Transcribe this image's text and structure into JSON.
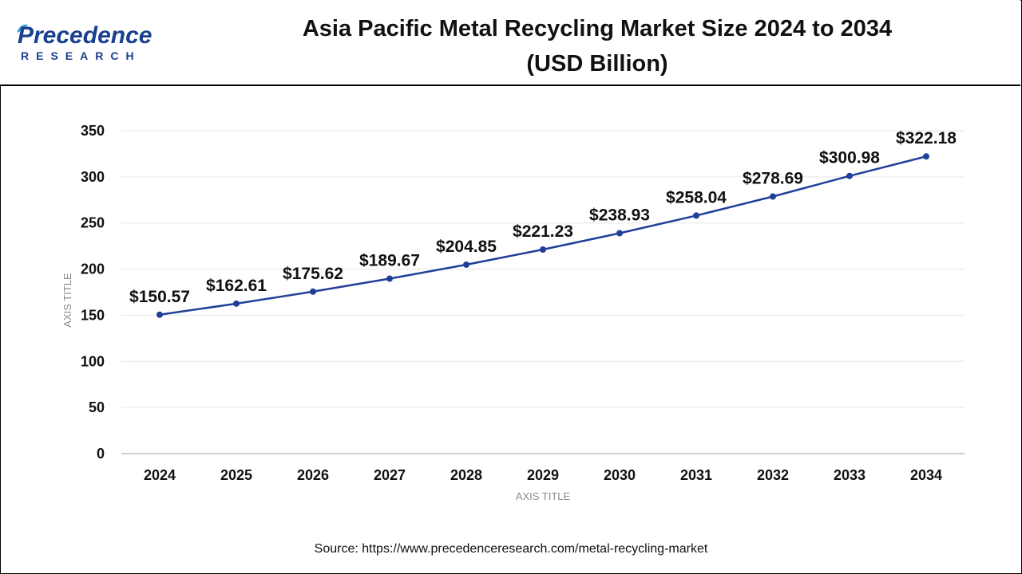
{
  "brand": {
    "name": "Precedence",
    "sub": "RESEARCH"
  },
  "header": {
    "title_line1": "Asia Pacific Metal Recycling Market Size 2024 to 2034",
    "title_line2": "(USD Billion)"
  },
  "footer": {
    "source": "Source: https://www.precedenceresearch.com/metal-recycling-market"
  },
  "colors": {
    "line": "#1f3f99",
    "marker": "#1f3f99",
    "grid": "#e6e6e6",
    "axis": "#bfbfbf",
    "brand": "#1a3f8f"
  },
  "chart_data": {
    "type": "line",
    "title": "Asia Pacific Metal Recycling Market Size 2024 to 2034 (USD Billion)",
    "xlabel": "AXIS TITLE",
    "ylabel": "AXIS TITLE",
    "categories": [
      "2024",
      "2025",
      "2026",
      "2027",
      "2028",
      "2029",
      "2030",
      "2031",
      "2032",
      "2033",
      "2034"
    ],
    "series": [
      {
        "values": [
          150.57,
          162.61,
          175.62,
          189.67,
          204.85,
          221.23,
          238.93,
          258.04,
          278.69,
          300.98,
          322.18
        ],
        "labels": [
          "$150.57",
          "$162.61",
          "$175.62",
          "$189.67",
          "$204.85",
          "$221.23",
          "$238.93",
          "$258.04",
          "$278.69",
          "$300.98",
          "$322.18"
        ]
      }
    ],
    "ylim": [
      0,
      350
    ],
    "yticks": [
      "0",
      "50",
      "100",
      "150",
      "200",
      "250",
      "300",
      "350"
    ],
    "grid": true,
    "legend": "none"
  }
}
